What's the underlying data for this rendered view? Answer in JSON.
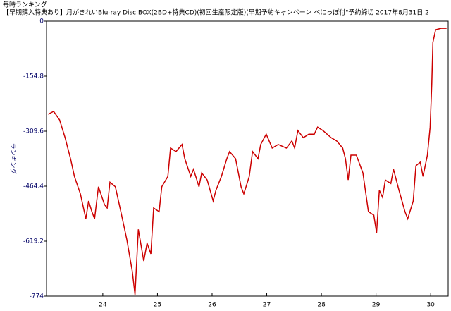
{
  "chart_data": {
    "type": "line",
    "title": "毎時ランキング",
    "subtitle": "【早期購入特典あり】月がきれいBlu-ray Disc BOX(2BD+特典CD)(初回生産限定版)(早期予約キャンペーン べにっぽ付\"予約締切 2017年8月31日 2",
    "y_label": "ランキング",
    "xlim": [
      22.97,
      30.32
    ],
    "xticks": [
      24,
      25,
      26,
      27,
      28,
      29,
      30
    ],
    "ylim": [
      -774,
      0
    ],
    "yticks": [
      0,
      -154.8,
      -309.6,
      -464.4,
      -619.2,
      -774
    ],
    "x": [
      23.0,
      23.1,
      23.21,
      23.31,
      23.41,
      23.48,
      23.59,
      23.69,
      23.74,
      23.8,
      23.85,
      23.92,
      24.03,
      24.08,
      24.13,
      24.23,
      24.33,
      24.44,
      24.54,
      24.59,
      24.65,
      24.75,
      24.81,
      24.88,
      24.93,
      25.03,
      25.08,
      25.19,
      25.24,
      25.34,
      25.45,
      25.5,
      25.61,
      25.66,
      25.76,
      25.81,
      25.91,
      26.02,
      26.07,
      26.17,
      26.27,
      26.32,
      26.43,
      26.53,
      26.58,
      26.68,
      26.74,
      26.84,
      26.89,
      26.99,
      27.1,
      27.21,
      27.36,
      27.46,
      27.51,
      27.57,
      27.67,
      27.77,
      27.87,
      27.93,
      28.03,
      28.18,
      28.28,
      28.39,
      28.44,
      28.49,
      28.54,
      28.64,
      28.76,
      28.86,
      28.96,
      29.01,
      29.06,
      29.12,
      29.17,
      29.27,
      29.32,
      29.42,
      29.53,
      29.58,
      29.68,
      29.73,
      29.81,
      29.86,
      29.94,
      29.99,
      30.02,
      30.04,
      30.09,
      30.19,
      30.29
    ],
    "series": [
      {
        "color": "#cc0000",
        "values": [
          -262,
          -254,
          -278,
          -328,
          -387,
          -437,
          -486,
          -556,
          -506,
          -536,
          -556,
          -466,
          -516,
          -526,
          -453,
          -466,
          -536,
          -615,
          -705,
          -770,
          -586,
          -675,
          -625,
          -655,
          -526,
          -536,
          -466,
          -437,
          -357,
          -367,
          -347,
          -387,
          -437,
          -417,
          -466,
          -427,
          -447,
          -506,
          -476,
          -437,
          -387,
          -367,
          -387,
          -466,
          -486,
          -437,
          -367,
          -387,
          -347,
          -318,
          -357,
          -347,
          -357,
          -337,
          -357,
          -308,
          -328,
          -318,
          -318,
          -298,
          -308,
          -328,
          -337,
          -357,
          -387,
          -447,
          -377,
          -377,
          -427,
          -536,
          -546,
          -596,
          -476,
          -496,
          -447,
          -457,
          -417,
          -476,
          -536,
          -556,
          -506,
          -407,
          -397,
          -437,
          -377,
          -298,
          -179,
          -60,
          -24,
          -20,
          -20
        ]
      }
    ]
  }
}
